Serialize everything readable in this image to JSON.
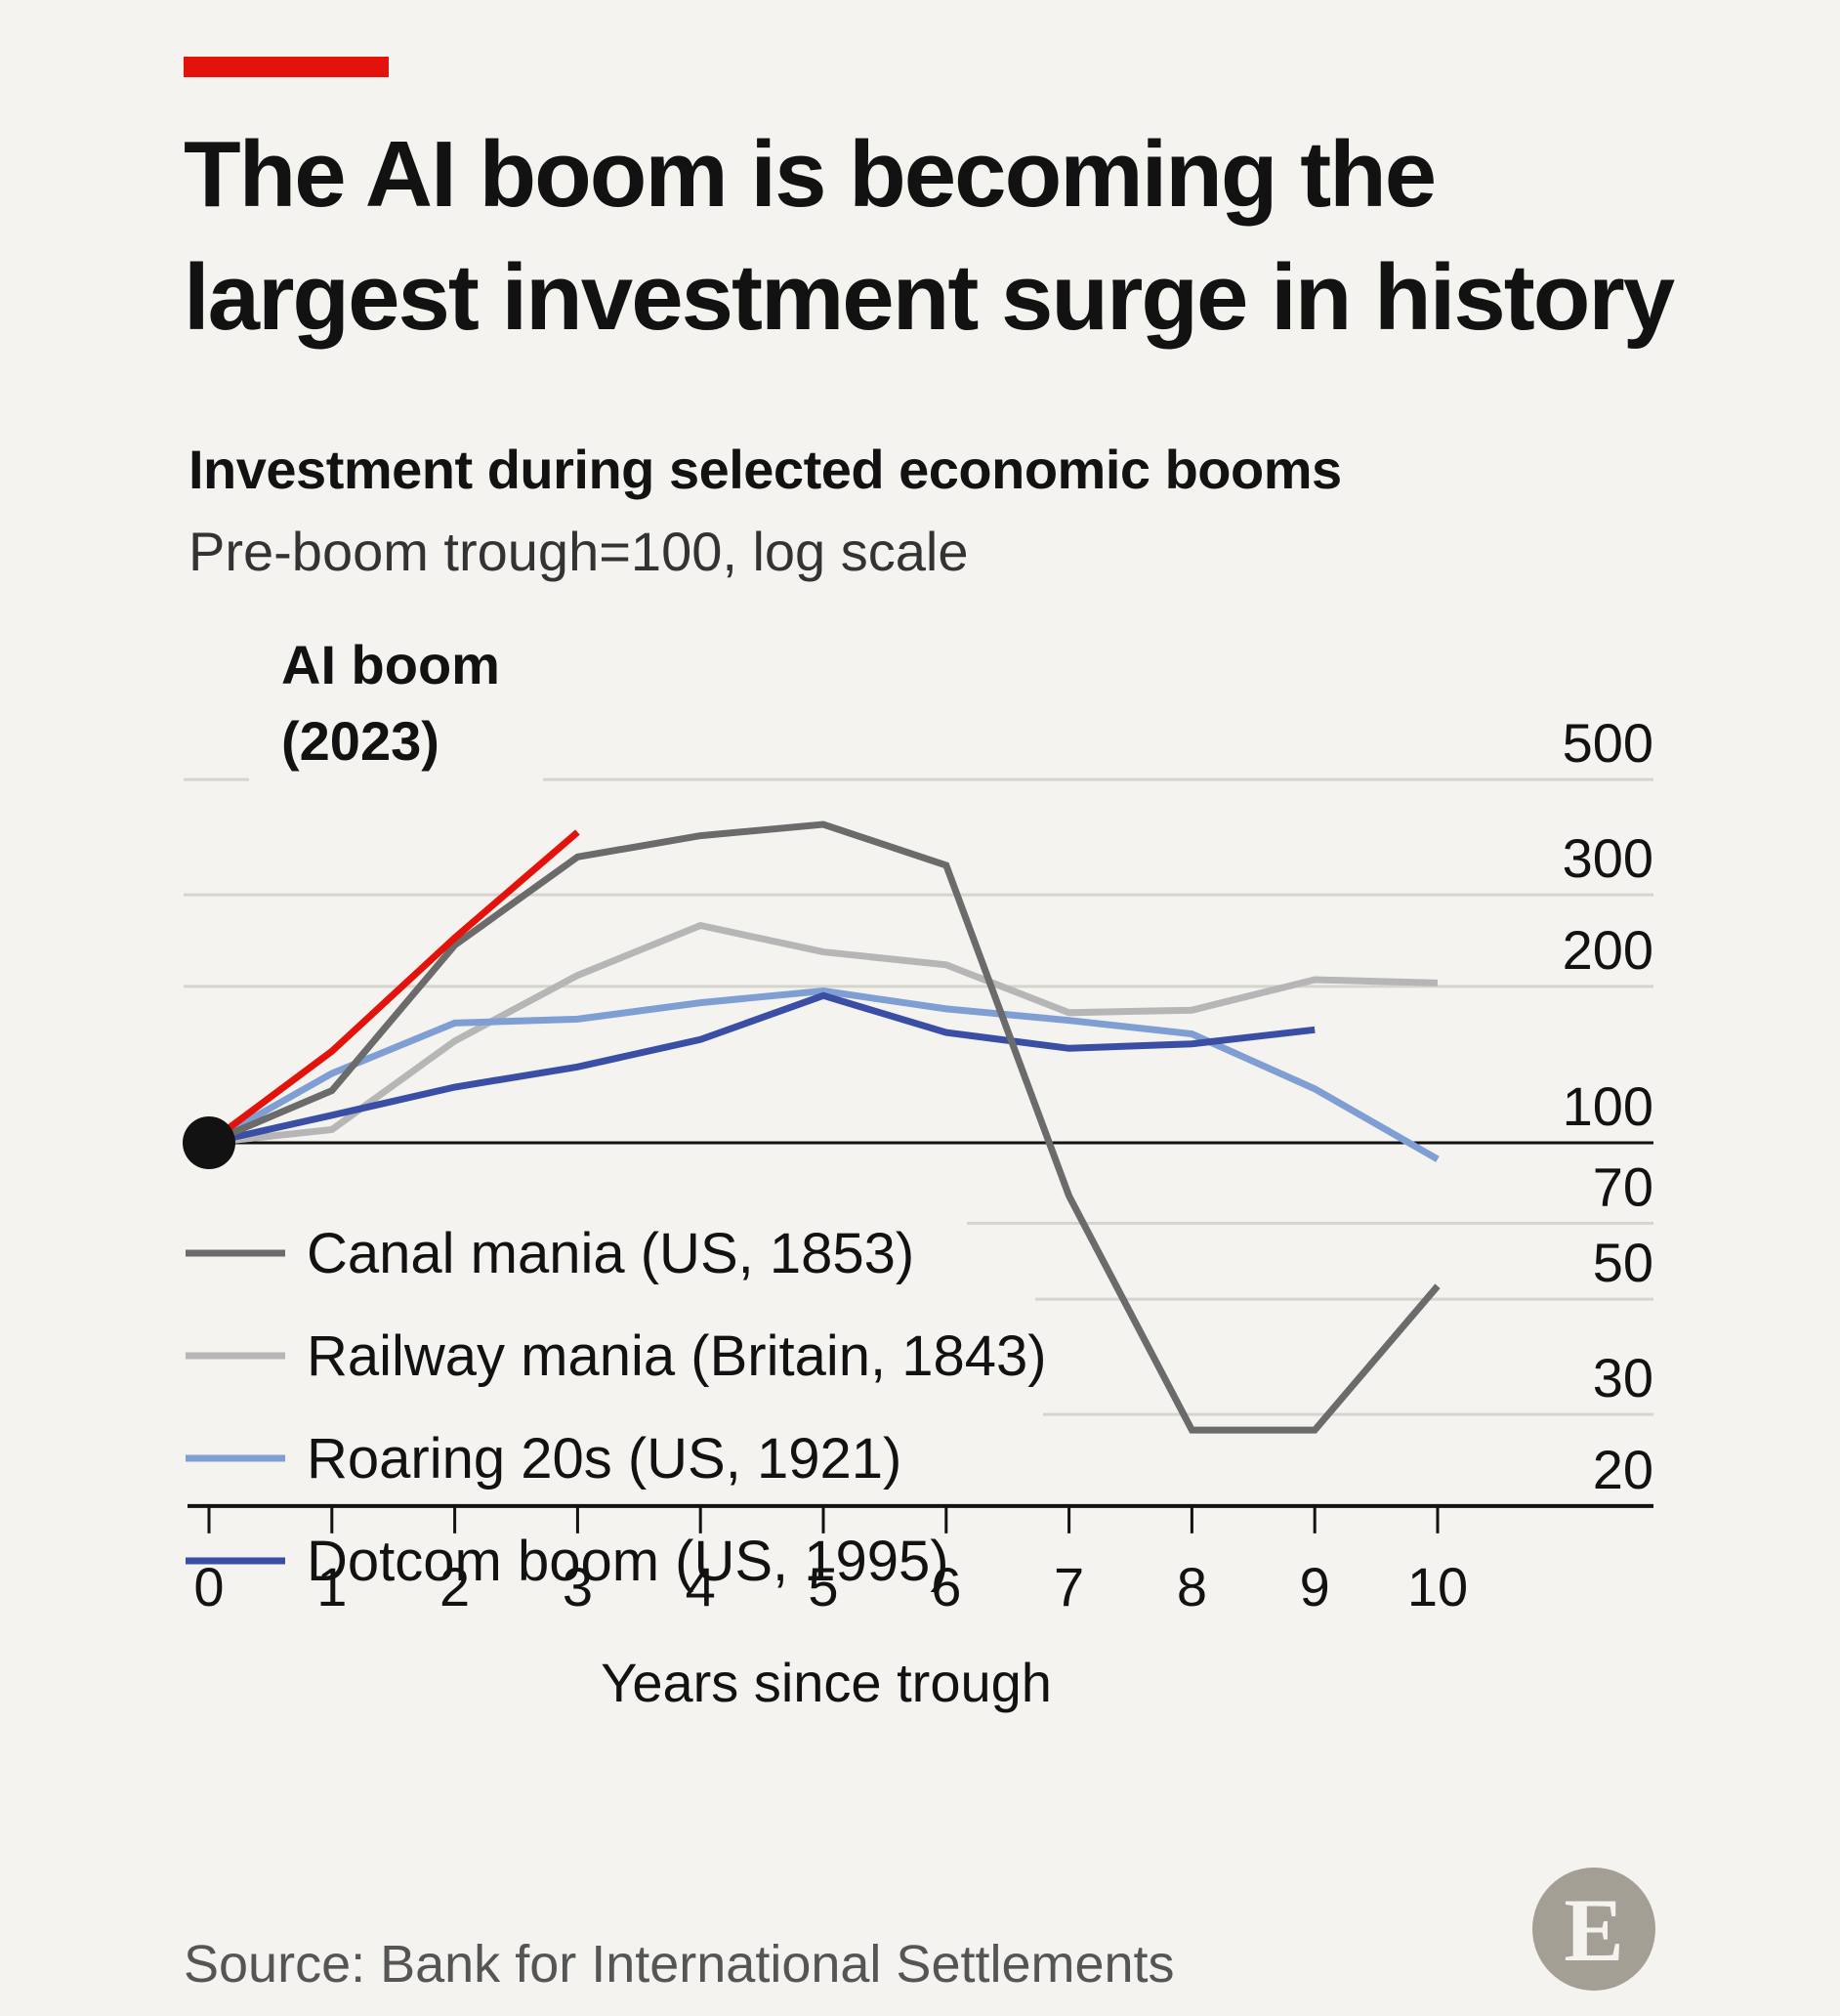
{
  "header": {
    "title_line1": "The AI boom is becoming the",
    "title_line2": "largest investment surge in history",
    "subtitle": "Investment during selected economic booms",
    "subsubtitle": "Pre-boom trough=100, log scale",
    "source": "Source: Bank for International Settlements",
    "logo_letter": "E"
  },
  "colors": {
    "accent_red": "#e3120b",
    "canal": "#6b6b6b",
    "railway": "#b6b6b6",
    "roaring": "#7f9fd4",
    "dotcom": "#3b4ea6",
    "ai": "#e3120b",
    "grid": "#d6d4cf",
    "baseline": "#121212"
  },
  "chart_data": {
    "type": "line",
    "title": "Investment during selected economic booms",
    "subtitle": "Pre-boom trough=100, log scale",
    "xlabel": "Years since trough",
    "ylabel": "",
    "y_scale": "log",
    "xlim": [
      0,
      10
    ],
    "ylim": [
      20,
      500
    ],
    "x_ticks": [
      0,
      1,
      2,
      3,
      4,
      5,
      6,
      7,
      8,
      9,
      10
    ],
    "y_ticks": [
      20,
      30,
      50,
      70,
      100,
      200,
      300,
      500
    ],
    "baseline": 100,
    "legend_position": "bottom-left",
    "annotation": {
      "text_line1": "AI boom",
      "text_line2": "(2023)"
    },
    "series": [
      {
        "name": "Canal mania (US, 1853)",
        "color_key": "canal",
        "x": [
          0,
          1,
          2,
          3,
          4,
          5,
          6,
          7,
          8,
          9,
          10
        ],
        "y": [
          100,
          126,
          240,
          355,
          390,
          410,
          342,
          79,
          28,
          28,
          53
        ]
      },
      {
        "name": "Railway mania (Britain, 1843)",
        "color_key": "railway",
        "x": [
          0,
          1,
          2,
          3,
          4,
          5,
          6,
          7,
          8,
          9,
          10
        ],
        "y": [
          100,
          106,
          157,
          210,
          262,
          233,
          220,
          178,
          180,
          206,
          203
        ]
      },
      {
        "name": "Roaring 20s (US, 1921)",
        "color_key": "roaring",
        "x": [
          0,
          1,
          2,
          3,
          4,
          5,
          6,
          7,
          8,
          9,
          10
        ],
        "y": [
          100,
          136,
          170,
          173,
          186,
          196,
          181,
          172,
          162,
          127,
          93
        ]
      },
      {
        "name": "Dotcom boom (US, 1995)",
        "color_key": "dotcom",
        "x": [
          0,
          1,
          2,
          3,
          4,
          5,
          6,
          7,
          8,
          9
        ],
        "y": [
          100,
          113,
          128,
          140,
          158,
          192,
          163,
          152,
          155,
          165
        ]
      },
      {
        "name": "",
        "color_key": "ai",
        "x": [
          0,
          1,
          2,
          3
        ],
        "y": [
          100,
          150,
          248,
          396
        ]
      }
    ]
  }
}
